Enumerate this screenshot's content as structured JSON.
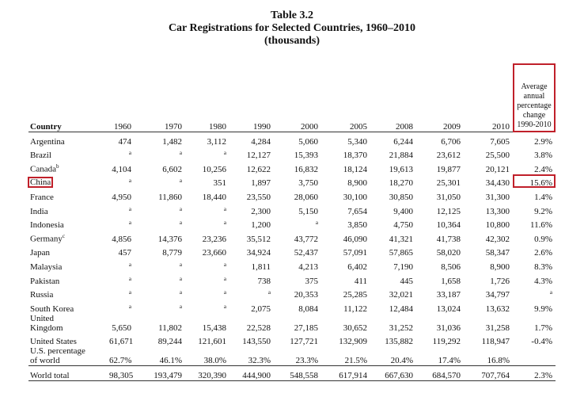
{
  "header": {
    "label": "Table 3.2",
    "title": "Car Registrations for Selected Countries, 1960–2010",
    "subtitle": "(thousands)"
  },
  "table": {
    "columns": [
      "Country",
      "1960",
      "1970",
      "1980",
      "1990",
      "2000",
      "2005",
      "2008",
      "2009",
      "2010",
      "Average annual percentage change 1990-2010"
    ],
    "rows": [
      {
        "country": "Argentina",
        "cells": [
          "474",
          "1,482",
          "3,112",
          "4,284",
          "5,060",
          "5,340",
          "6,244",
          "6,706",
          "7,605",
          "2.9%"
        ]
      },
      {
        "country": "Brazil",
        "cells": [
          "a",
          "a",
          "a",
          "12,127",
          "15,393",
          "18,370",
          "21,884",
          "23,612",
          "25,500",
          "3.8%"
        ]
      },
      {
        "country": "Canada",
        "note": "b",
        "cells": [
          "4,104",
          "6,602",
          "10,256",
          "12,622",
          "16,832",
          "18,124",
          "19,613",
          "19,877",
          "20,121",
          "2.4%"
        ]
      },
      {
        "country": "China",
        "cells": [
          "a",
          "a",
          "351",
          "1,897",
          "3,750",
          "8,900",
          "18,270",
          "25,301",
          "34,430",
          "15.6%"
        ]
      },
      {
        "country": "France",
        "cells": [
          "4,950",
          "11,860",
          "18,440",
          "23,550",
          "28,060",
          "30,100",
          "30,850",
          "31,050",
          "31,300",
          "1.4%"
        ]
      },
      {
        "country": "India",
        "cells": [
          "a",
          "a",
          "a",
          "2,300",
          "5,150",
          "7,654",
          "9,400",
          "12,125",
          "13,300",
          "9.2%"
        ]
      },
      {
        "country": "Indonesia",
        "cells": [
          "a",
          "a",
          "a",
          "1,200",
          "a",
          "3,850",
          "4,750",
          "10,364",
          "10,800",
          "11.6%"
        ]
      },
      {
        "country": "Germany",
        "note": "c",
        "cells": [
          "4,856",
          "14,376",
          "23,236",
          "35,512",
          "43,772",
          "46,090",
          "41,321",
          "41,738",
          "42,302",
          "0.9%"
        ]
      },
      {
        "country": "Japan",
        "cells": [
          "457",
          "8,779",
          "23,660",
          "34,924",
          "52,437",
          "57,091",
          "57,865",
          "58,020",
          "58,347",
          "2.6%"
        ]
      },
      {
        "country": "Malaysia",
        "cells": [
          "a",
          "a",
          "a",
          "1,811",
          "4,213",
          "6,402",
          "7,190",
          "8,506",
          "8,900",
          "8.3%"
        ]
      },
      {
        "country": "Pakistan",
        "cells": [
          "a",
          "a",
          "a",
          "738",
          "375",
          "411",
          "445",
          "1,658",
          "1,726",
          "4.3%"
        ]
      },
      {
        "country": "Russia",
        "cells": [
          "a",
          "a",
          "a",
          "a",
          "20,353",
          "25,285",
          "32,021",
          "33,187",
          "34,797",
          "a"
        ]
      },
      {
        "country": "South Korea",
        "cells": [
          "a",
          "a",
          "a",
          "2,075",
          "8,084",
          "11,122",
          "12,484",
          "13,024",
          "13,632",
          "9.9%"
        ]
      },
      {
        "country": "United\nKingdom",
        "cells": [
          "5,650",
          "11,802",
          "15,438",
          "22,528",
          "27,185",
          "30,652",
          "31,252",
          "31,036",
          "31,258",
          "1.7%"
        ]
      },
      {
        "country": "United States",
        "cells": [
          "61,671",
          "89,244",
          "121,601",
          "143,550",
          "127,721",
          "132,909",
          "135,882",
          "119,292",
          "118,947",
          "-0.4%"
        ]
      },
      {
        "country": "U.S. percentage\nof world",
        "cells": [
          "62.7%",
          "46.1%",
          "38.0%",
          "32.3%",
          "23.3%",
          "21.5%",
          "20.4%",
          "17.4%",
          "16.8%",
          null
        ]
      },
      {
        "country": "World total",
        "cells": [
          "98,305",
          "193,479",
          "320,390",
          "444,900",
          "548,558",
          "617,914",
          "667,630",
          "684,570",
          "707,764",
          "2.3%"
        ]
      }
    ]
  }
}
